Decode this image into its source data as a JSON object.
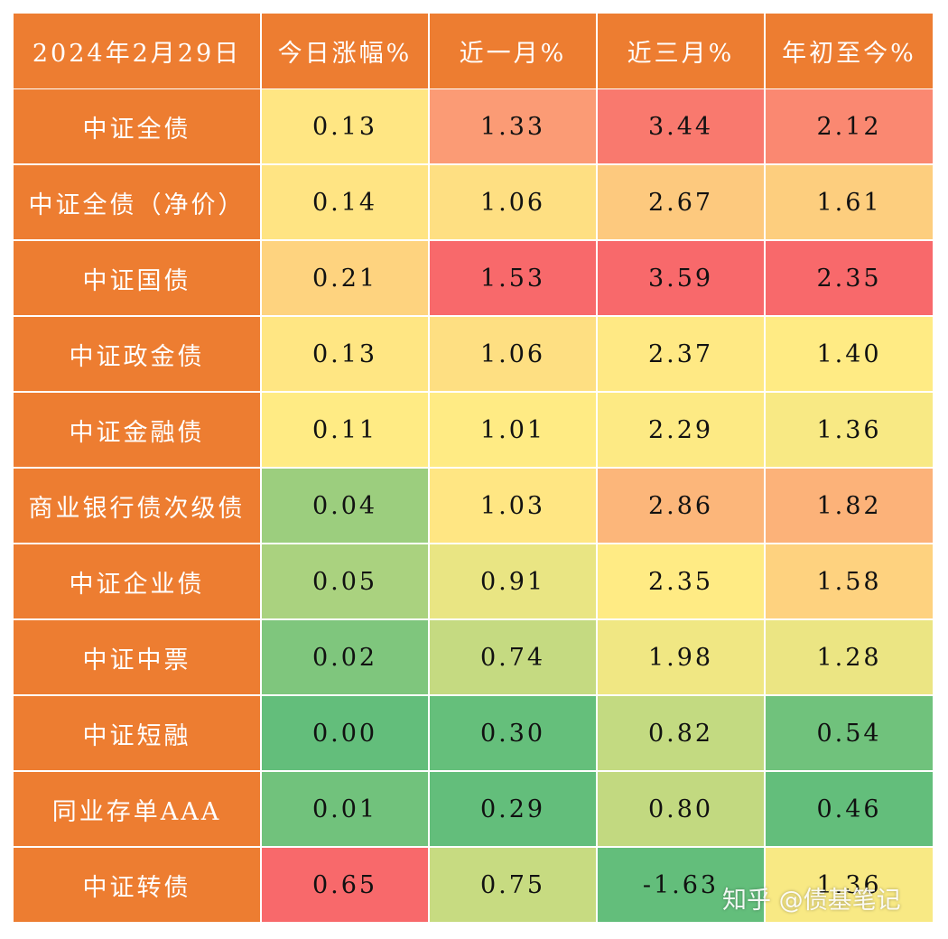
{
  "table": {
    "header": [
      "2024年2月29日",
      "今日涨幅%",
      "近一月%",
      "近三月%",
      "年初至今%"
    ],
    "rows": [
      [
        "中证全债",
        "0.13",
        "1.33",
        "3.44",
        "2.12"
      ],
      [
        "中证全债（净价）",
        "0.14",
        "1.06",
        "2.67",
        "1.61"
      ],
      [
        "中证国债",
        "0.21",
        "1.53",
        "3.59",
        "2.35"
      ],
      [
        "中证政金债",
        "0.13",
        "1.06",
        "2.37",
        "1.40"
      ],
      [
        "中证金融债",
        "0.11",
        "1.01",
        "2.29",
        "1.36"
      ],
      [
        "商业银行债次级债",
        "0.04",
        "1.03",
        "2.86",
        "1.82"
      ],
      [
        "中证企业债",
        "0.05",
        "0.91",
        "2.35",
        "1.58"
      ],
      [
        "中证中票",
        "0.02",
        "0.74",
        "1.98",
        "1.28"
      ],
      [
        "中证短融",
        "0.00",
        "0.30",
        "0.82",
        "0.54"
      ],
      [
        "同业存单AAA",
        "0.01",
        "0.29",
        "0.80",
        "0.46"
      ],
      [
        "中证转债",
        "0.65",
        "0.75",
        "-1.63",
        "1.36"
      ]
    ]
  },
  "watermark": "知乎 @债基笔记"
}
